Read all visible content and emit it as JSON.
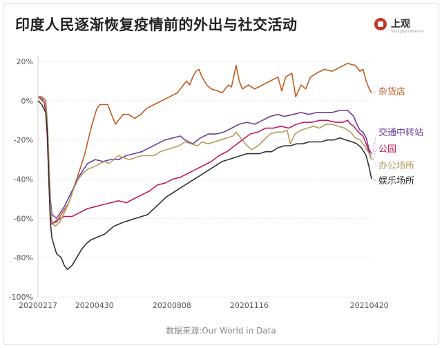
{
  "title": "印度人民逐渐恢复疫情前的外出与社交活动",
  "logo": {
    "name": "上观",
    "subtitle": "Shanghai Observer"
  },
  "source": "数据来源:Our World in Data",
  "chart_data": {
    "type": "line",
    "y_ticks": [
      "20%",
      "0%",
      "-20%",
      "-40%",
      "-60%",
      "-80%",
      "-100%"
    ],
    "x_ticks": [
      "20200217",
      "20200430",
      "20200808",
      "20201116",
      "20210420"
    ],
    "x_tick_days": [
      0,
      73,
      173,
      273,
      428
    ],
    "ylim": [
      -100,
      20
    ],
    "grid": true,
    "legend": "inline-right",
    "series": [
      {
        "name": "杂货店",
        "color": "#c05a1e",
        "points": [
          [
            0,
            2
          ],
          [
            5,
            2
          ],
          [
            10,
            0
          ],
          [
            12,
            -10
          ],
          [
            14,
            -35
          ],
          [
            16,
            -55
          ],
          [
            18,
            -62
          ],
          [
            24,
            -62
          ],
          [
            30,
            -58
          ],
          [
            40,
            -52
          ],
          [
            50,
            -40
          ],
          [
            60,
            -28
          ],
          [
            66,
            -18
          ],
          [
            70,
            -12
          ],
          [
            76,
            -4
          ],
          [
            80,
            -2
          ],
          [
            90,
            -2
          ],
          [
            96,
            -8
          ],
          [
            100,
            -12
          ],
          [
            104,
            -10
          ],
          [
            110,
            -7
          ],
          [
            117,
            -7
          ],
          [
            125,
            -9
          ],
          [
            133,
            -7
          ],
          [
            140,
            -4
          ],
          [
            150,
            -2
          ],
          [
            160,
            0
          ],
          [
            170,
            2
          ],
          [
            180,
            4
          ],
          [
            186,
            7
          ],
          [
            192,
            10
          ],
          [
            196,
            8
          ],
          [
            200,
            12
          ],
          [
            204,
            15
          ],
          [
            208,
            16
          ],
          [
            212,
            12
          ],
          [
            218,
            8
          ],
          [
            224,
            6
          ],
          [
            232,
            5
          ],
          [
            238,
            4
          ],
          [
            242,
            6
          ],
          [
            246,
            8
          ],
          [
            250,
            7
          ],
          [
            256,
            18
          ],
          [
            260,
            10
          ],
          [
            264,
            6
          ],
          [
            272,
            8
          ],
          [
            280,
            6
          ],
          [
            290,
            8
          ],
          [
            300,
            10
          ],
          [
            310,
            12
          ],
          [
            315,
            5
          ],
          [
            320,
            12
          ],
          [
            328,
            14
          ],
          [
            333,
            2
          ],
          [
            340,
            8
          ],
          [
            346,
            6
          ],
          [
            352,
            12
          ],
          [
            360,
            14
          ],
          [
            370,
            16
          ],
          [
            380,
            15
          ],
          [
            390,
            17
          ],
          [
            400,
            19
          ],
          [
            410,
            18
          ],
          [
            416,
            15
          ],
          [
            420,
            16
          ],
          [
            424,
            10
          ],
          [
            428,
            6
          ],
          [
            431,
            4
          ]
        ]
      },
      {
        "name": "交通中转站",
        "color": "#6a3d9a",
        "points": [
          [
            0,
            2
          ],
          [
            5,
            1
          ],
          [
            10,
            -2
          ],
          [
            12,
            -10
          ],
          [
            14,
            -30
          ],
          [
            16,
            -50
          ],
          [
            18,
            -58
          ],
          [
            24,
            -60
          ],
          [
            34,
            -54
          ],
          [
            44,
            -46
          ],
          [
            54,
            -38
          ],
          [
            64,
            -32
          ],
          [
            74,
            -30
          ],
          [
            84,
            -31
          ],
          [
            94,
            -30
          ],
          [
            104,
            -30
          ],
          [
            114,
            -28
          ],
          [
            124,
            -27
          ],
          [
            134,
            -26
          ],
          [
            144,
            -24
          ],
          [
            154,
            -22
          ],
          [
            164,
            -20
          ],
          [
            174,
            -19
          ],
          [
            184,
            -18
          ],
          [
            190,
            -20
          ],
          [
            200,
            -22
          ],
          [
            210,
            -19
          ],
          [
            220,
            -17
          ],
          [
            230,
            -17
          ],
          [
            240,
            -16
          ],
          [
            250,
            -14
          ],
          [
            260,
            -12
          ],
          [
            270,
            -11
          ],
          [
            280,
            -12
          ],
          [
            290,
            -10
          ],
          [
            300,
            -8
          ],
          [
            310,
            -7
          ],
          [
            318,
            -8
          ],
          [
            330,
            -7
          ],
          [
            340,
            -6
          ],
          [
            350,
            -7
          ],
          [
            360,
            -6
          ],
          [
            370,
            -6
          ],
          [
            380,
            -6
          ],
          [
            390,
            -5
          ],
          [
            400,
            -5
          ],
          [
            408,
            -8
          ],
          [
            412,
            -12
          ],
          [
            416,
            -15
          ],
          [
            420,
            -16
          ],
          [
            424,
            -19
          ],
          [
            428,
            -25
          ],
          [
            431,
            -27
          ]
        ]
      },
      {
        "name": "公园",
        "color": "#c2185b",
        "points": [
          [
            0,
            2
          ],
          [
            5,
            0
          ],
          [
            8,
            -1
          ],
          [
            10,
            -6
          ],
          [
            12,
            -18
          ],
          [
            14,
            -40
          ],
          [
            16,
            -58
          ],
          [
            18,
            -63
          ],
          [
            24,
            -61
          ],
          [
            34,
            -59
          ],
          [
            44,
            -59
          ],
          [
            54,
            -57
          ],
          [
            64,
            -55
          ],
          [
            74,
            -54
          ],
          [
            84,
            -53
          ],
          [
            94,
            -52
          ],
          [
            104,
            -51
          ],
          [
            114,
            -52
          ],
          [
            124,
            -50
          ],
          [
            134,
            -48
          ],
          [
            144,
            -46
          ],
          [
            154,
            -43
          ],
          [
            164,
            -42
          ],
          [
            174,
            -40
          ],
          [
            184,
            -39
          ],
          [
            194,
            -37
          ],
          [
            204,
            -35
          ],
          [
            214,
            -33
          ],
          [
            224,
            -31
          ],
          [
            234,
            -28
          ],
          [
            244,
            -26
          ],
          [
            254,
            -23
          ],
          [
            264,
            -20
          ],
          [
            274,
            -17
          ],
          [
            284,
            -16
          ],
          [
            294,
            -14
          ],
          [
            304,
            -14
          ],
          [
            314,
            -13
          ],
          [
            324,
            -14
          ],
          [
            334,
            -12
          ],
          [
            344,
            -11
          ],
          [
            354,
            -11
          ],
          [
            364,
            -10
          ],
          [
            374,
            -10
          ],
          [
            384,
            -11
          ],
          [
            394,
            -11
          ],
          [
            400,
            -10
          ],
          [
            404,
            -12
          ],
          [
            408,
            -13
          ],
          [
            414,
            -16
          ],
          [
            420,
            -18
          ],
          [
            426,
            -24
          ],
          [
            431,
            -30
          ]
        ]
      },
      {
        "name": "办公场所",
        "color": "#b39b5e",
        "points": [
          [
            0,
            2
          ],
          [
            5,
            0
          ],
          [
            10,
            -2
          ],
          [
            12,
            -10
          ],
          [
            14,
            -30
          ],
          [
            16,
            -52
          ],
          [
            18,
            -62
          ],
          [
            22,
            -64
          ],
          [
            28,
            -62
          ],
          [
            34,
            -57
          ],
          [
            40,
            -52
          ],
          [
            46,
            -45
          ],
          [
            52,
            -40
          ],
          [
            58,
            -37
          ],
          [
            64,
            -35
          ],
          [
            70,
            -34
          ],
          [
            76,
            -33
          ],
          [
            80,
            -32
          ],
          [
            86,
            -31
          ],
          [
            92,
            -32
          ],
          [
            98,
            -30
          ],
          [
            104,
            -28
          ],
          [
            110,
            -29
          ],
          [
            118,
            -30
          ],
          [
            126,
            -29
          ],
          [
            134,
            -28
          ],
          [
            142,
            -28
          ],
          [
            150,
            -28
          ],
          [
            158,
            -26
          ],
          [
            166,
            -25
          ],
          [
            174,
            -24
          ],
          [
            182,
            -23
          ],
          [
            190,
            -21
          ],
          [
            198,
            -22
          ],
          [
            206,
            -23
          ],
          [
            212,
            -21
          ],
          [
            220,
            -22
          ],
          [
            228,
            -21
          ],
          [
            236,
            -20
          ],
          [
            244,
            -19
          ],
          [
            252,
            -18
          ],
          [
            256,
            -16
          ],
          [
            260,
            -18
          ],
          [
            268,
            -22
          ],
          [
            276,
            -25
          ],
          [
            284,
            -23
          ],
          [
            292,
            -20
          ],
          [
            300,
            -17
          ],
          [
            308,
            -16
          ],
          [
            316,
            -16
          ],
          [
            322,
            -15
          ],
          [
            326,
            -22
          ],
          [
            332,
            -17
          ],
          [
            340,
            -15
          ],
          [
            348,
            -14
          ],
          [
            356,
            -13
          ],
          [
            364,
            -14
          ],
          [
            372,
            -12
          ],
          [
            380,
            -12
          ],
          [
            388,
            -13
          ],
          [
            396,
            -14
          ],
          [
            404,
            -16
          ],
          [
            410,
            -19
          ],
          [
            416,
            -20
          ],
          [
            422,
            -23
          ],
          [
            428,
            -27
          ],
          [
            431,
            -30
          ]
        ]
      },
      {
        "name": "娱乐场所",
        "color": "#2f2f2f",
        "points": [
          [
            0,
            0
          ],
          [
            5,
            -2
          ],
          [
            10,
            -6
          ],
          [
            12,
            -15
          ],
          [
            14,
            -40
          ],
          [
            16,
            -62
          ],
          [
            18,
            -70
          ],
          [
            24,
            -78
          ],
          [
            30,
            -80
          ],
          [
            34,
            -84
          ],
          [
            38,
            -86
          ],
          [
            44,
            -84
          ],
          [
            50,
            -80
          ],
          [
            56,
            -76
          ],
          [
            62,
            -73
          ],
          [
            68,
            -71
          ],
          [
            74,
            -70
          ],
          [
            80,
            -69
          ],
          [
            86,
            -68
          ],
          [
            92,
            -66
          ],
          [
            98,
            -64
          ],
          [
            104,
            -63
          ],
          [
            110,
            -62
          ],
          [
            118,
            -61
          ],
          [
            126,
            -60
          ],
          [
            134,
            -59
          ],
          [
            142,
            -58
          ],
          [
            150,
            -55
          ],
          [
            158,
            -52
          ],
          [
            166,
            -49
          ],
          [
            174,
            -47
          ],
          [
            182,
            -45
          ],
          [
            190,
            -43
          ],
          [
            198,
            -41
          ],
          [
            206,
            -39
          ],
          [
            214,
            -37
          ],
          [
            222,
            -35
          ],
          [
            230,
            -33
          ],
          [
            238,
            -31
          ],
          [
            246,
            -30
          ],
          [
            254,
            -29
          ],
          [
            262,
            -28
          ],
          [
            270,
            -27
          ],
          [
            278,
            -27
          ],
          [
            286,
            -27
          ],
          [
            294,
            -26
          ],
          [
            302,
            -26
          ],
          [
            310,
            -24
          ],
          [
            318,
            -23
          ],
          [
            326,
            -23
          ],
          [
            334,
            -22
          ],
          [
            342,
            -22
          ],
          [
            350,
            -21
          ],
          [
            358,
            -21
          ],
          [
            366,
            -21
          ],
          [
            374,
            -20
          ],
          [
            382,
            -20
          ],
          [
            390,
            -19
          ],
          [
            398,
            -20
          ],
          [
            406,
            -21
          ],
          [
            412,
            -22
          ],
          [
            418,
            -24
          ],
          [
            424,
            -28
          ],
          [
            428,
            -34
          ],
          [
            431,
            -40
          ]
        ]
      }
    ]
  }
}
